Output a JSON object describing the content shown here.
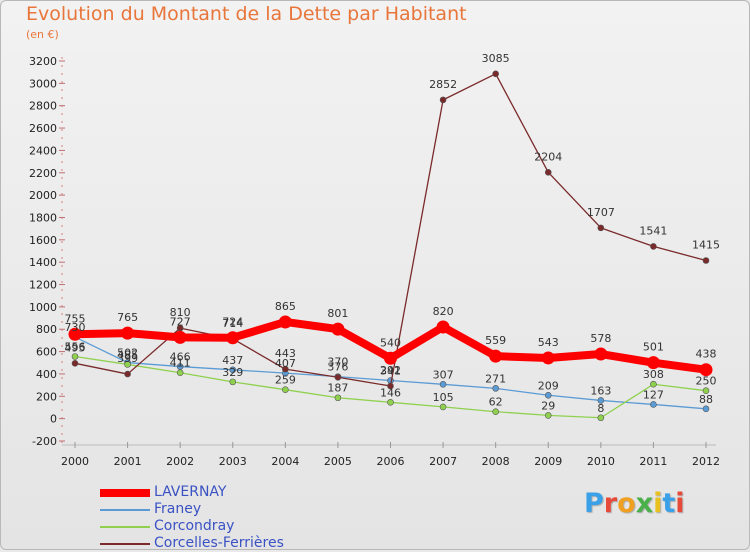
{
  "chart_data": {
    "type": "line",
    "title": "Evolution du Montant de la Dette par Habitant",
    "subtitle": "(en €)",
    "x": [
      "2000",
      "2001",
      "2002",
      "2003",
      "2004",
      "2005",
      "2006",
      "2007",
      "2008",
      "2009",
      "2010",
      "2011",
      "2012"
    ],
    "ylim": [
      -200,
      3200
    ],
    "yticks": [
      -200,
      0,
      200,
      400,
      600,
      800,
      1000,
      1200,
      1400,
      1600,
      1800,
      2000,
      2200,
      2400,
      2600,
      2800,
      3000,
      3200
    ],
    "grid": false,
    "legend_position": "bottom-left",
    "series": [
      {
        "name": "LAVERNAY",
        "color": "#ff0000",
        "values": [
          755,
          765,
          727,
          724,
          865,
          801,
          540,
          820,
          559,
          543,
          578,
          501,
          438
        ],
        "labels": [
          "755",
          "765",
          "727",
          "724",
          "865",
          "801",
          "540",
          "820",
          "559",
          "543",
          "578",
          "501",
          "438"
        ]
      },
      {
        "name": "Franey",
        "color": "#5b9bd5",
        "values": [
          730,
          502,
          466,
          437,
          407,
          376,
          341,
          307,
          271,
          209,
          163,
          127,
          88
        ],
        "labels": [
          "730",
          "502",
          "466",
          "437",
          "407",
          "376",
          "341",
          "307",
          "271",
          "209",
          "163",
          "127",
          "88"
        ]
      },
      {
        "name": "Corcondray",
        "color": "#8fd14f",
        "values": [
          556,
          485,
          411,
          329,
          259,
          187,
          146,
          105,
          62,
          29,
          8,
          308,
          250
        ],
        "labels": [
          "556",
          "485",
          "411",
          "329",
          "259",
          "187",
          "146",
          "105",
          "62",
          "29",
          "8",
          "308",
          "250"
        ]
      },
      {
        "name": "Corcelles-Ferrières",
        "color": "#7a2a2a",
        "values": [
          495,
          399,
          810,
          714,
          443,
          370,
          292,
          2852,
          3085,
          2204,
          1707,
          1541,
          1415
        ],
        "labels": [
          "495",
          "399",
          "810",
          "714",
          "443",
          "370",
          "292",
          "2852",
          "3085",
          "2204",
          "1707",
          "1541",
          "1415"
        ]
      }
    ]
  },
  "logo": {
    "parts": [
      "P",
      "r",
      "o",
      "x",
      "i",
      "t",
      "i"
    ]
  }
}
